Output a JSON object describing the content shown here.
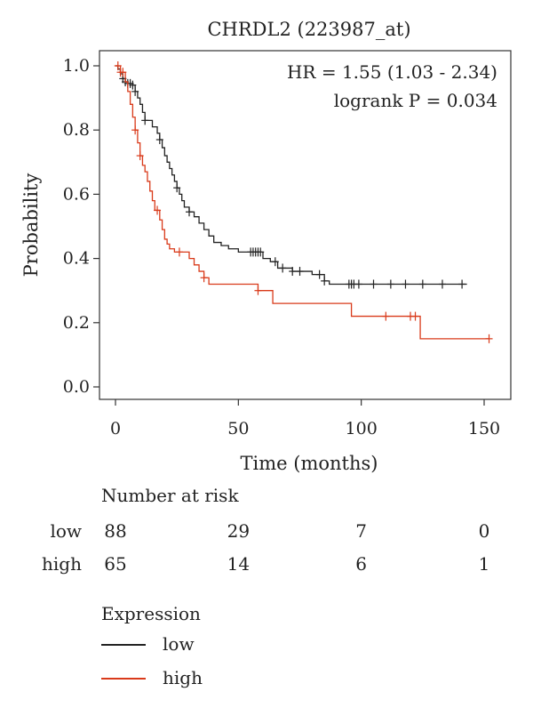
{
  "chart_data": {
    "type": "line",
    "subtype": "kaplan-meier",
    "title": "CHRDL2 (223987_at)",
    "xlabel": "Time (months)",
    "ylabel": "Probability",
    "xlim": [
      0,
      155
    ],
    "ylim": [
      0,
      1.0
    ],
    "x_ticks": [
      0,
      50,
      100,
      150
    ],
    "y_ticks": [
      0.0,
      0.2,
      0.4,
      0.6,
      0.8,
      1.0
    ],
    "x_tick_labels": [
      "0",
      "50",
      "100",
      "150"
    ],
    "y_tick_labels": [
      "0.0",
      "0.2",
      "0.4",
      "0.6",
      "0.8",
      "1.0"
    ],
    "grid": false,
    "annotations": [
      "HR = 1.55 (1.03 - 2.34)",
      "logrank P = 0.034"
    ],
    "series": [
      {
        "name": "low",
        "color": "#222222",
        "steps": [
          [
            0,
            1.0
          ],
          [
            1,
            0.99
          ],
          [
            2,
            0.975
          ],
          [
            3,
            0.96
          ],
          [
            4,
            0.95
          ],
          [
            5,
            0.945
          ],
          [
            7,
            0.94
          ],
          [
            8,
            0.92
          ],
          [
            9,
            0.9
          ],
          [
            10,
            0.88
          ],
          [
            11,
            0.855
          ],
          [
            12,
            0.83
          ],
          [
            15,
            0.81
          ],
          [
            17,
            0.79
          ],
          [
            18,
            0.77
          ],
          [
            19,
            0.745
          ],
          [
            20,
            0.72
          ],
          [
            21,
            0.7
          ],
          [
            22,
            0.68
          ],
          [
            23,
            0.66
          ],
          [
            24,
            0.64
          ],
          [
            25,
            0.62
          ],
          [
            26,
            0.6
          ],
          [
            27,
            0.58
          ],
          [
            28,
            0.56
          ],
          [
            30,
            0.545
          ],
          [
            32,
            0.53
          ],
          [
            34,
            0.51
          ],
          [
            36,
            0.49
          ],
          [
            38,
            0.47
          ],
          [
            40,
            0.45
          ],
          [
            43,
            0.44
          ],
          [
            46,
            0.43
          ],
          [
            50,
            0.42
          ],
          [
            60,
            0.4
          ],
          [
            63,
            0.39
          ],
          [
            66,
            0.37
          ],
          [
            72,
            0.36
          ],
          [
            80,
            0.35
          ],
          [
            85,
            0.33
          ],
          [
            87,
            0.32
          ],
          [
            143,
            0.32
          ]
        ],
        "censor_x": [
          3,
          4,
          5,
          6,
          7,
          8,
          12,
          18,
          25,
          30,
          55,
          56,
          57,
          58,
          59,
          65,
          68,
          72,
          75,
          83,
          85,
          95,
          96,
          97,
          99,
          105,
          112,
          118,
          125,
          133,
          141
        ]
      },
      {
        "name": "high",
        "color": "#d93a1a",
        "steps": [
          [
            0,
            1.0
          ],
          [
            2,
            0.98
          ],
          [
            4,
            0.95
          ],
          [
            5,
            0.92
          ],
          [
            6,
            0.88
          ],
          [
            7,
            0.84
          ],
          [
            8,
            0.8
          ],
          [
            9,
            0.76
          ],
          [
            10,
            0.72
          ],
          [
            11,
            0.69
          ],
          [
            12,
            0.67
          ],
          [
            13,
            0.64
          ],
          [
            14,
            0.61
          ],
          [
            15,
            0.58
          ],
          [
            16,
            0.55
          ],
          [
            18,
            0.52
          ],
          [
            19,
            0.49
          ],
          [
            20,
            0.46
          ],
          [
            21,
            0.445
          ],
          [
            22,
            0.43
          ],
          [
            24,
            0.42
          ],
          [
            30,
            0.4
          ],
          [
            32,
            0.38
          ],
          [
            34,
            0.36
          ],
          [
            36,
            0.34
          ],
          [
            38,
            0.32
          ],
          [
            58,
            0.3
          ],
          [
            64,
            0.26
          ],
          [
            96,
            0.22
          ],
          [
            124,
            0.15
          ],
          [
            152,
            0.15
          ]
        ],
        "censor_x": [
          1,
          2,
          3,
          8,
          10,
          17,
          26,
          36,
          58,
          110,
          120,
          122,
          152
        ]
      }
    ],
    "risk_table": {
      "title": "Number at risk",
      "time_points": [
        0,
        50,
        100,
        150
      ],
      "rows": [
        {
          "label": "low",
          "values": [
            "88",
            "29",
            "7",
            "0"
          ]
        },
        {
          "label": "high",
          "values": [
            "65",
            "14",
            "6",
            "1"
          ]
        }
      ]
    },
    "legend": {
      "title": "Expression",
      "entries": [
        {
          "label": "low",
          "color": "#222222"
        },
        {
          "label": "high",
          "color": "#d93a1a"
        }
      ]
    }
  }
}
